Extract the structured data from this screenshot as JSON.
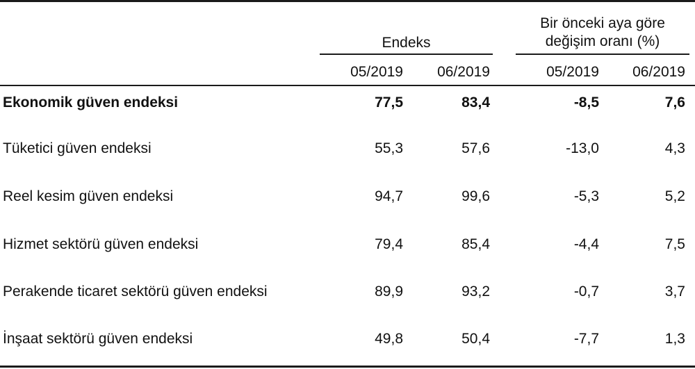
{
  "header": {
    "group_index": "Endeks",
    "group_change_line1": "Bir önceki aya göre",
    "group_change_line2": "değişim oranı (%)",
    "col_index_1": "05/2019",
    "col_index_2": "06/2019",
    "col_change_1": "05/2019",
    "col_change_2": "06/2019"
  },
  "rows": [
    {
      "label": "Ekonomik güven endeksi",
      "idx1": "77,5",
      "idx2": "83,4",
      "chg1": "-8,5",
      "chg2": "7,6"
    },
    {
      "label": "Tüketici güven endeksi",
      "idx1": "55,3",
      "idx2": "57,6",
      "chg1": "-13,0",
      "chg2": "4,3"
    },
    {
      "label": "Reel kesim güven endeksi",
      "idx1": "94,7",
      "idx2": "99,6",
      "chg1": "-5,3",
      "chg2": "5,2"
    },
    {
      "label": "Hizmet sektörü güven endeksi",
      "idx1": "79,4",
      "idx2": "85,4",
      "chg1": "-4,4",
      "chg2": "7,5"
    },
    {
      "label": "Perakende ticaret sektörü güven endeksi",
      "idx1": "89,9",
      "idx2": "93,2",
      "chg1": "-0,7",
      "chg2": "3,7"
    },
    {
      "label": "İnşaat sektörü güven endeksi",
      "idx1": "49,8",
      "idx2": "50,4",
      "chg1": "-7,7",
      "chg2": "1,3"
    }
  ]
}
